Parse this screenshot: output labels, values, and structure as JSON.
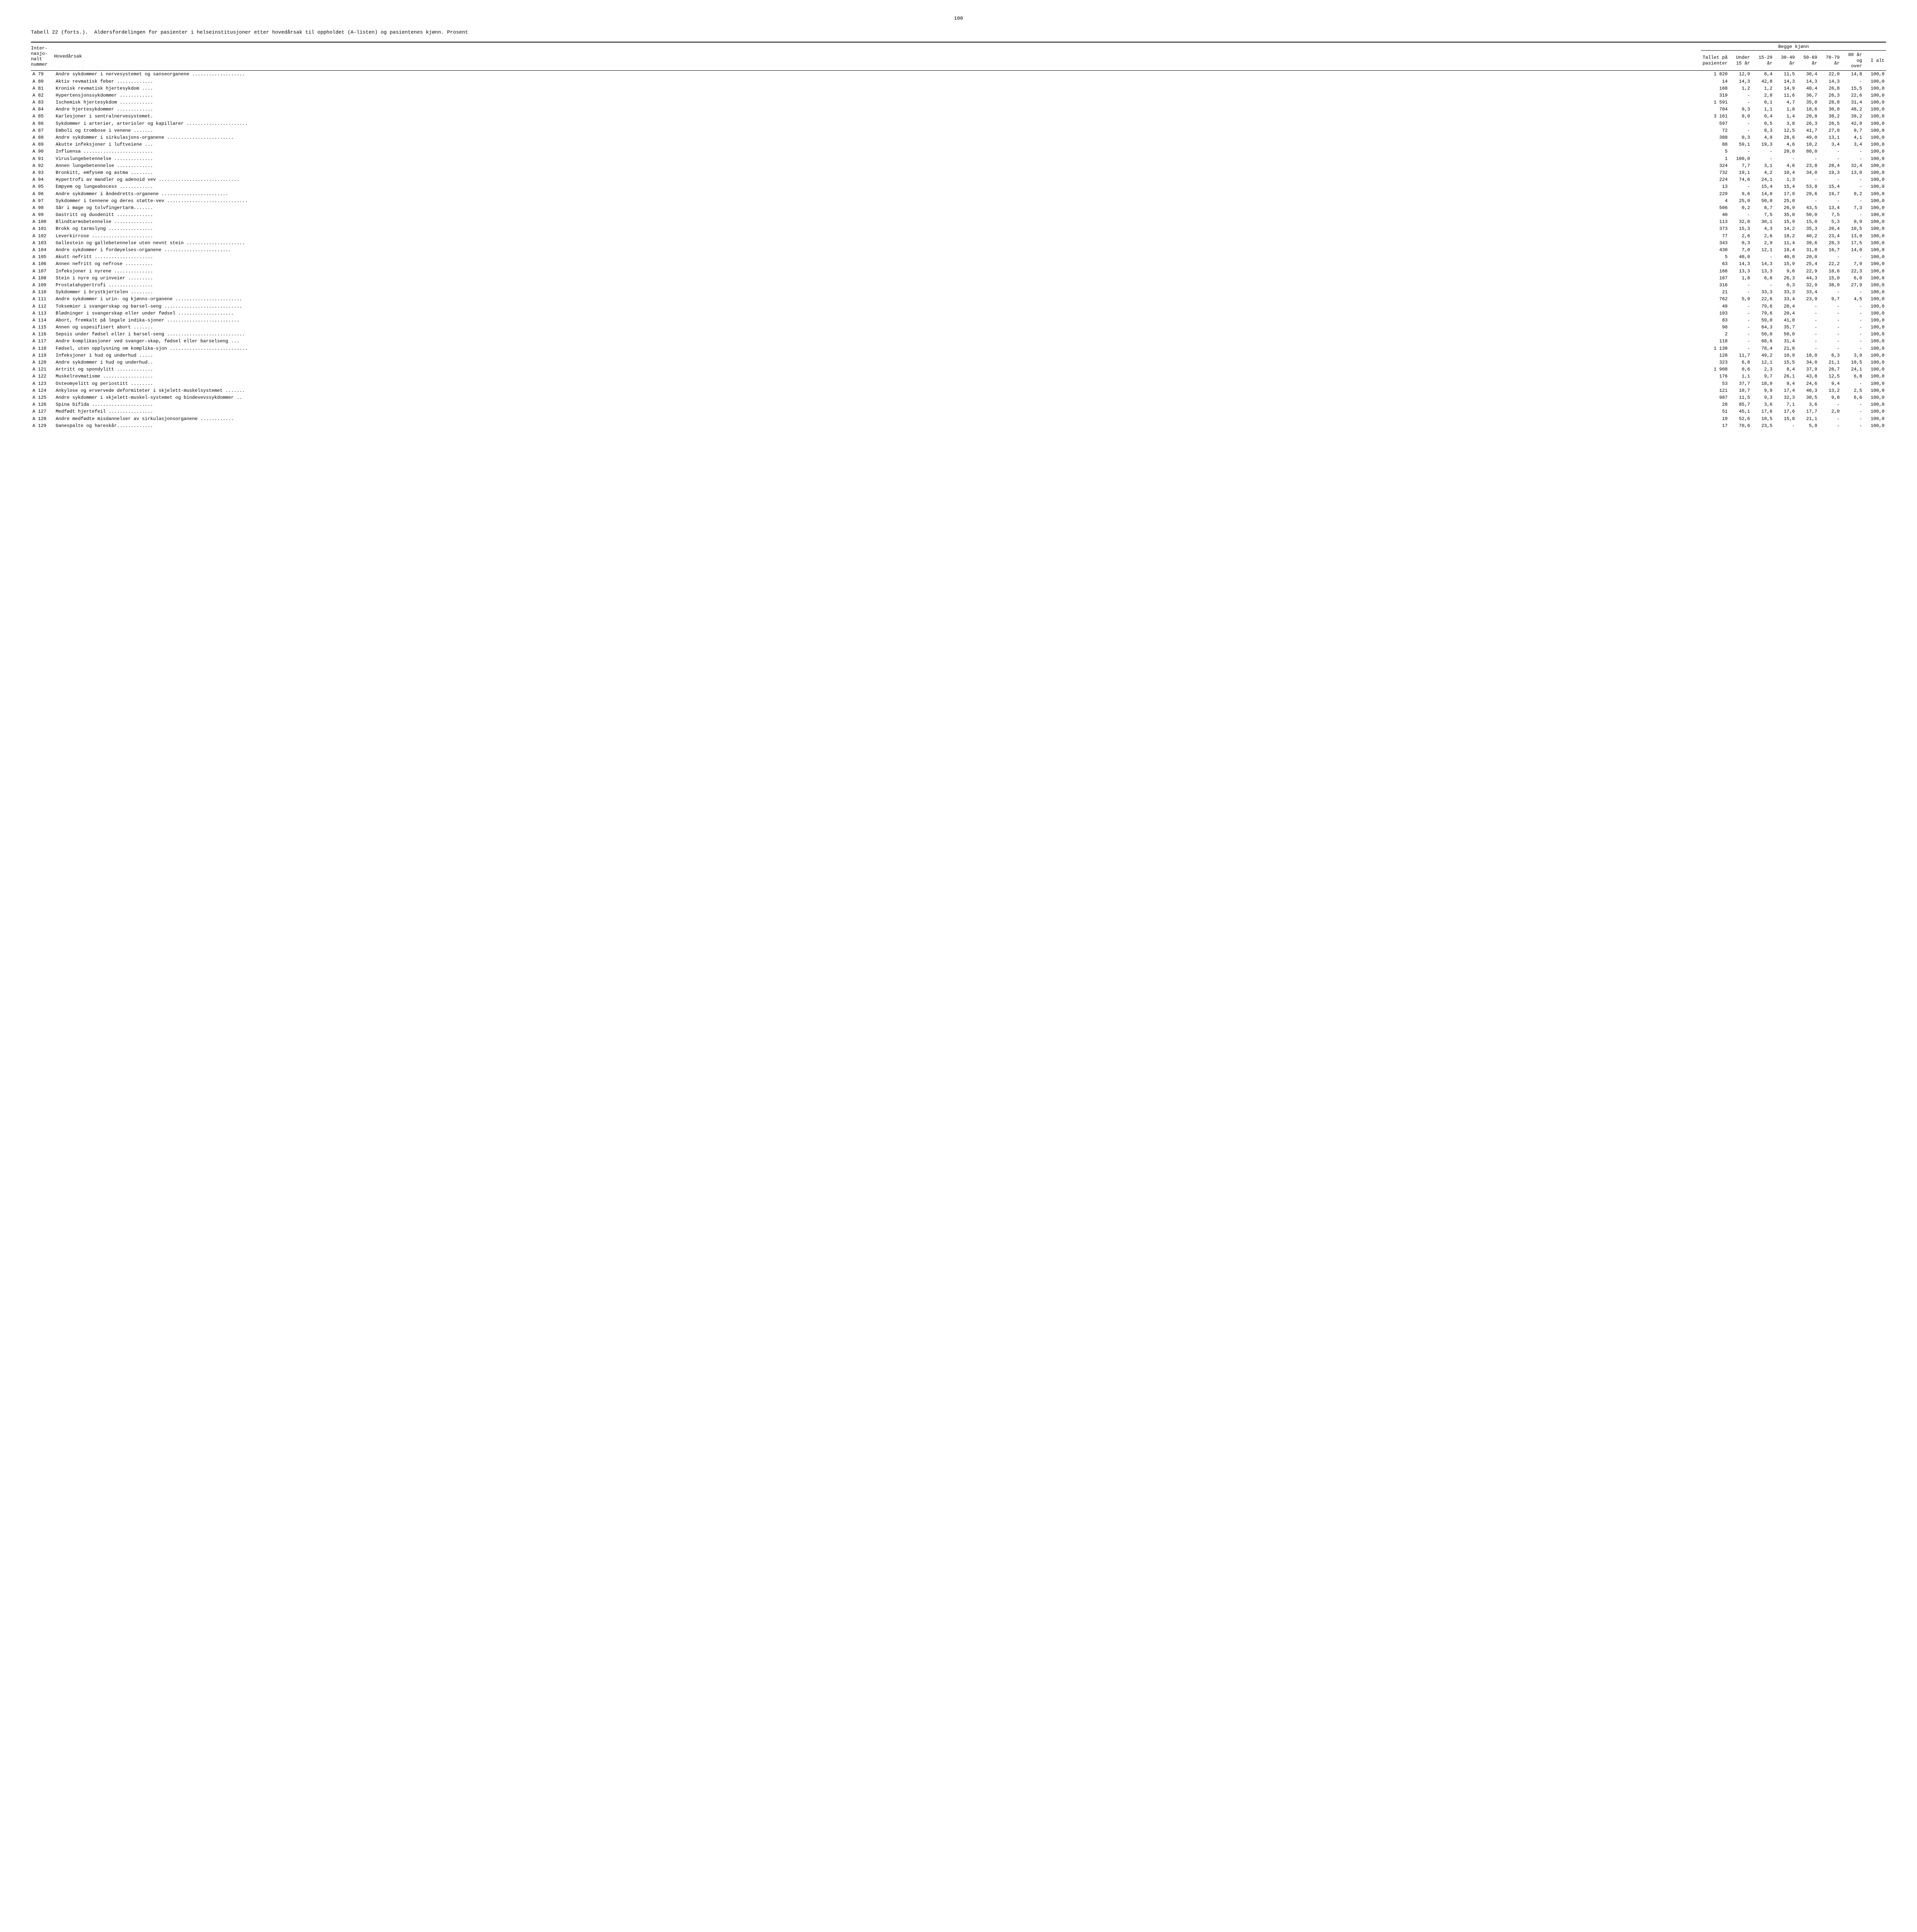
{
  "page_number": "100",
  "title_prefix": "Tabell 22 (forts.).",
  "title_text": "Aldersfordelingen for pasienter i helseinstitusjoner etter hovedårsak til oppholdet (A-listen) og pasientenes kjønn.  Prosent",
  "header": {
    "group_label": "Begge kjønn",
    "col_code": "Inter-\nnasjo-\nnalt\nnummer",
    "col_desc": "Hovedårsak",
    "col_count": "Tallet på\npasienter",
    "col_under15": "Under\n15 år",
    "col_15_29": "15-29\når",
    "col_30_49": "30-49\når",
    "col_50_69": "50-69\når",
    "col_70_79": "70-79\når",
    "col_80plus": "80 år\nog\nover",
    "col_total": "I alt"
  },
  "rows": [
    {
      "code": "A  79",
      "desc": "Andre sykdommer i nervesystemet og sanseorganene ...................",
      "count": "1 820",
      "c1": "12,9",
      "c2": "8,4",
      "c3": "11,5",
      "c4": "30,4",
      "c5": "22,0",
      "c6": "14,8",
      "tot": "100,0"
    },
    {
      "code": "A  80",
      "desc": "Aktiv revmatisk feber .............",
      "count": "14",
      "c1": "14,3",
      "c2": "42,8",
      "c3": "14,3",
      "c4": "14,3",
      "c5": "14,3",
      "c6": "-",
      "tot": "100,0"
    },
    {
      "code": "A  81",
      "desc": "Kronisk revmatisk hjertesykdom ....",
      "count": "168",
      "c1": "1,2",
      "c2": "1,2",
      "c3": "14,9",
      "c4": "40,4",
      "c5": "26,8",
      "c6": "15,5",
      "tot": "100,0"
    },
    {
      "code": "A  82",
      "desc": "Hypertensjonssykdommer ............",
      "count": "319",
      "c1": "-",
      "c2": "2,8",
      "c3": "11,6",
      "c4": "36,7",
      "c5": "26,3",
      "c6": "22,6",
      "tot": "100,0"
    },
    {
      "code": "A  83",
      "desc": "Ischemisk hjertesykdom ............",
      "count": "1 591",
      "c1": "-",
      "c2": "0,1",
      "c3": "4,7",
      "c4": "35,0",
      "c5": "28,8",
      "c6": "31,4",
      "tot": "100,0"
    },
    {
      "code": "A  84",
      "desc": "Andre hjertesykdommer .............",
      "count": "704",
      "c1": "0,3",
      "c2": "1,1",
      "c3": "1,8",
      "c4": "18,6",
      "c5": "30,0",
      "c6": "48,2",
      "tot": "100,0"
    },
    {
      "code": "A  85",
      "desc": "Karlesjoner i sentralnervesystemet.",
      "count": "3 161",
      "c1": "0,0",
      "c2": "0,4",
      "c3": "1,4",
      "c4": "20,8",
      "c5": "38,2",
      "c6": "39,2",
      "tot": "100,0"
    },
    {
      "code": "A  86",
      "desc": "Sykdommer i arterier, arterioler og kapillarer ......................",
      "count": "597",
      "c1": "-",
      "c2": "0,5",
      "c3": "3,8",
      "c4": "26,3",
      "c5": "26,5",
      "c6": "42,9",
      "tot": "100,0"
    },
    {
      "code": "A  87",
      "desc": "Emboli og trombose i venene .......",
      "count": "72",
      "c1": "-",
      "c2": "8,3",
      "c3": "12,5",
      "c4": "41,7",
      "c5": "27,8",
      "c6": "9,7",
      "tot": "100,0"
    },
    {
      "code": "A  88",
      "desc": "Andre sykdommer i sirkulasjons-organene ........................",
      "count": "388",
      "c1": "0,3",
      "c2": "4,9",
      "c3": "28,6",
      "c4": "49,0",
      "c5": "13,1",
      "c6": "4,1",
      "tot": "100,0"
    },
    {
      "code": "A  89",
      "desc": "Akutte infeksjoner i luftveiene ...",
      "count": "88",
      "c1": "59,1",
      "c2": "19,3",
      "c3": "4,6",
      "c4": "10,2",
      "c5": "3,4",
      "c6": "3,4",
      "tot": "100,0"
    },
    {
      "code": "A  90",
      "desc": "Influensa .........................",
      "count": "5",
      "c1": "-",
      "c2": "-",
      "c3": "20,0",
      "c4": "80,0",
      "c5": "-",
      "c6": "-",
      "tot": "100,0"
    },
    {
      "code": "A  91",
      "desc": "Viruslungebetennelse ..............",
      "count": "1",
      "c1": "100,0",
      "c2": "-",
      "c3": "-",
      "c4": "-",
      "c5": "-",
      "c6": "-",
      "tot": "100,0"
    },
    {
      "code": "A  92",
      "desc": "Annen lungebetennelse .............",
      "count": "324",
      "c1": "7,7",
      "c2": "3,1",
      "c3": "4,6",
      "c4": "23,8",
      "c5": "28,4",
      "c6": "32,4",
      "tot": "100,0"
    },
    {
      "code": "A  93",
      "desc": "Bronkitt, emfysem og astma ........",
      "count": "732",
      "c1": "19,1",
      "c2": "4,2",
      "c3": "10,4",
      "c4": "34,0",
      "c5": "19,3",
      "c6": "13,0",
      "tot": "100,0"
    },
    {
      "code": "A  94",
      "desc": "Hypertrofi av mandler og adenoid vev .............................",
      "count": "224",
      "c1": "74,6",
      "c2": "24,1",
      "c3": "1,3",
      "c4": "-",
      "c5": "-",
      "c6": "-",
      "tot": "100,0"
    },
    {
      "code": "A  95",
      "desc": "Empyem og lungeabscess ............",
      "count": "13",
      "c1": "-",
      "c2": "15,4",
      "c3": "15,4",
      "c4": "53,8",
      "c5": "15,4",
      "c6": "-",
      "tot": "100,0"
    },
    {
      "code": "A  96",
      "desc": "Andre sykdommer i åndedretts-organene ........................",
      "count": "229",
      "c1": "9,6",
      "c2": "14,0",
      "c3": "17,9",
      "c4": "29,6",
      "c5": "19,7",
      "c6": "9,2",
      "tot": "100,0"
    },
    {
      "code": "A  97",
      "desc": "Sykdommer i tennene og deres støtte-vev .............................",
      "count": "4",
      "c1": "25,0",
      "c2": "50,0",
      "c3": "25,0",
      "c4": "-",
      "c5": "-",
      "c6": "-",
      "tot": "100,0"
    },
    {
      "code": "A  98",
      "desc": "Sår i mage og tolvfingertarm.......",
      "count": "506",
      "c1": "0,2",
      "c2": "8,7",
      "c3": "26,9",
      "c4": "43,5",
      "c5": "13,4",
      "c6": "7,3",
      "tot": "100,0"
    },
    {
      "code": "A  99",
      "desc": "Gastritt og duodenitt .............",
      "count": "40",
      "c1": "-",
      "c2": "7,5",
      "c3": "35,0",
      "c4": "50,0",
      "c5": "7,5",
      "c6": "-",
      "tot": "100,0"
    },
    {
      "code": "A 100",
      "desc": "Blindtarmsbetennelse ..............",
      "count": "113",
      "c1": "32,8",
      "c2": "30,1",
      "c3": "15,9",
      "c4": "15,0",
      "c5": "5,3",
      "c6": "0,9",
      "tot": "100,0"
    },
    {
      "code": "A 101",
      "desc": "Brokk og tarmslyng ................",
      "count": "373",
      "c1": "15,3",
      "c2": "4,3",
      "c3": "14,2",
      "c4": "35,3",
      "c5": "20,4",
      "c6": "10,5",
      "tot": "100,0"
    },
    {
      "code": "A 102",
      "desc": "Leverkirrose ......................",
      "count": "77",
      "c1": "2,6",
      "c2": "2,6",
      "c3": "18,2",
      "c4": "40,2",
      "c5": "23,4",
      "c6": "13,0",
      "tot": "100,0"
    },
    {
      "code": "A 103",
      "desc": "Gallestein og gallebetennelse uten nevnt stein .....................",
      "count": "343",
      "c1": "0,3",
      "c2": "2,9",
      "c3": "11,4",
      "c4": "39,6",
      "c5": "28,3",
      "c6": "17,5",
      "tot": "100,0"
    },
    {
      "code": "A 104",
      "desc": "Andre sykdommer i fordøyelses-organene ........................",
      "count": "430",
      "c1": "7,0",
      "c2": "12,1",
      "c3": "18,4",
      "c4": "31,8",
      "c5": "16,7",
      "c6": "14,0",
      "tot": "100,0"
    },
    {
      "code": "A 105",
      "desc": "Akutt nefritt .....................",
      "count": "5",
      "c1": "40,0",
      "c2": "-",
      "c3": "40,0",
      "c4": "20,0",
      "c5": "-",
      "c6": "-",
      "tot": "100,0"
    },
    {
      "code": "A 106",
      "desc": "Annen nefritt og nefrose ..........",
      "count": "63",
      "c1": "14,3",
      "c2": "14,3",
      "c3": "15,9",
      "c4": "25,4",
      "c5": "22,2",
      "c6": "7,9",
      "tot": "100,0"
    },
    {
      "code": "A 107",
      "desc": "Infeksjoner i nyrene ..............",
      "count": "166",
      "c1": "13,3",
      "c2": "13,3",
      "c3": "9,6",
      "c4": "22,9",
      "c5": "18,6",
      "c6": "22,3",
      "tot": "100,0"
    },
    {
      "code": "A 108",
      "desc": "Stein i nyre og urinveier .........",
      "count": "167",
      "c1": "1,8",
      "c2": "6,6",
      "c3": "26,3",
      "c4": "44,3",
      "c5": "15,0",
      "c6": "6,0",
      "tot": "100,0"
    },
    {
      "code": "A 109",
      "desc": "Prostatahypertrofi ................",
      "count": "316",
      "c1": "-",
      "c2": "-",
      "c3": "0,3",
      "c4": "32,9",
      "c5": "38,9",
      "c6": "27,9",
      "tot": "100,0"
    },
    {
      "code": "A 110",
      "desc": "Sykdommer i brystkjertelen ........",
      "count": "21",
      "c1": "-",
      "c2": "33,3",
      "c3": "33,3",
      "c4": "33,4",
      "c5": "-",
      "c6": "-",
      "tot": "100,0"
    },
    {
      "code": "A 111",
      "desc": "Andre sykdommer i urin- og kjønns-organene ........................",
      "count": "762",
      "c1": "5,9",
      "c2": "22,6",
      "c3": "33,4",
      "c4": "23,9",
      "c5": "9,7",
      "c6": "4,5",
      "tot": "100,0"
    },
    {
      "code": "A 112",
      "desc": "Toksemier i svangerskap og barsel-seng ............................",
      "count": "49",
      "c1": "-",
      "c2": "79,6",
      "c3": "20,4",
      "c4": "-",
      "c5": "-",
      "c6": "-",
      "tot": "100,0"
    },
    {
      "code": "A 113",
      "desc": "Blødninger i svangerskap eller under fødsel ....................",
      "count": "103",
      "c1": "-",
      "c2": "79,6",
      "c3": "20,4",
      "c4": "-",
      "c5": "-",
      "c6": "-",
      "tot": "100,0"
    },
    {
      "code": "A 114",
      "desc": "Abort, fremkalt på legale indika-sjoner ..........................",
      "count": "83",
      "c1": "-",
      "c2": "59,0",
      "c3": "41,0",
      "c4": "-",
      "c5": "-",
      "c6": "-",
      "tot": "100,0"
    },
    {
      "code": "A 115",
      "desc": "Annen og uspesifisert abort .......",
      "count": "98",
      "c1": "-",
      "c2": "64,3",
      "c3": "35,7",
      "c4": "-",
      "c5": "-",
      "c6": "-",
      "tot": "100,0"
    },
    {
      "code": "A 116",
      "desc": "Sepsis under fødsel eller i barsel-seng ............................",
      "count": "2",
      "c1": "-",
      "c2": "50,0",
      "c3": "50,0",
      "c4": "-",
      "c5": "-",
      "c6": "-",
      "tot": "100,0"
    },
    {
      "code": "A 117",
      "desc": "Andre komplikasjoner ved svanger-skap, fødsel eller barselseng ...",
      "count": "118",
      "c1": "-",
      "c2": "68,6",
      "c3": "31,4",
      "c4": "-",
      "c5": "-",
      "c6": "-",
      "tot": "100,0"
    },
    {
      "code": "A 118",
      "desc": "Fødsel, uten opplysning om komplika-sjon ............................",
      "count": "1 138",
      "c1": "-",
      "c2": "78,4",
      "c3": "21,6",
      "c4": "-",
      "c5": "-",
      "c6": "-",
      "tot": "100,0"
    },
    {
      "code": "A 119",
      "desc": "Infeksjoner i hud og underhud .....",
      "count": "128",
      "c1": "11,7",
      "c2": "49,2",
      "c3": "10,9",
      "c4": "18,0",
      "c5": "6,3",
      "c6": "3,9",
      "tot": "100,0"
    },
    {
      "code": "A 120",
      "desc": "Andre sykdommer i hud og underhud..",
      "count": "323",
      "c1": "6,8",
      "c2": "12,1",
      "c3": "15,5",
      "c4": "34,0",
      "c5": "21,1",
      "c6": "10,5",
      "tot": "100,0"
    },
    {
      "code": "A 121",
      "desc": "Artritt og spondylitt .............",
      "count": "1 908",
      "c1": "0,6",
      "c2": "2,3",
      "c3": "8,4",
      "c4": "37,9",
      "c5": "26,7",
      "c6": "24,1",
      "tot": "100,0"
    },
    {
      "code": "A 122",
      "desc": "Muskelrevmatisme ..................",
      "count": "176",
      "c1": "1,1",
      "c2": "9,7",
      "c3": "26,1",
      "c4": "43,8",
      "c5": "12,5",
      "c6": "6,8",
      "tot": "100,0"
    },
    {
      "code": "A 123",
      "desc": "Osteomyelitt og periostitt ........",
      "count": "53",
      "c1": "37,7",
      "c2": "18,9",
      "c3": "9,4",
      "c4": "24,6",
      "c5": "9,4",
      "c6": "-",
      "tot": "100,0"
    },
    {
      "code": "A 124",
      "desc": "Ankylose og ervervede deformiteter i skjelett-muskelsystemet .......",
      "count": "121",
      "c1": "10,7",
      "c2": "9,9",
      "c3": "17,4",
      "c4": "46,3",
      "c5": "13,2",
      "c6": "2,5",
      "tot": "100,0"
    },
    {
      "code": "A 125",
      "desc": "Andre sykdommer i skjelett-muskel-systemet og bindevevssykdommer ..",
      "count": "987",
      "c1": "11,5",
      "c2": "9,3",
      "c3": "32,3",
      "c4": "30,5",
      "c5": "9,8",
      "c6": "6,6",
      "tot": "100,0"
    },
    {
      "code": "A 126",
      "desc": "Spina bifida ......................",
      "count": "28",
      "c1": "85,7",
      "c2": "3,6",
      "c3": "7,1",
      "c4": "3,6",
      "c5": "-",
      "c6": "-",
      "tot": "100,0"
    },
    {
      "code": "A 127",
      "desc": "Medfødt hjertefeil ................",
      "count": "51",
      "c1": "45,1",
      "c2": "17,6",
      "c3": "17,6",
      "c4": "17,7",
      "c5": "2,0",
      "c6": "-",
      "tot": "100,0"
    },
    {
      "code": "A 128",
      "desc": "Andre medfødte misdannelser av sirkulasjonsorganene ............",
      "count": "19",
      "c1": "52,6",
      "c2": "10,5",
      "c3": "15,8",
      "c4": "21,1",
      "c5": "-",
      "c6": "-",
      "tot": "100,0"
    },
    {
      "code": "A 129",
      "desc": "Ganespalte og hareskår.............",
      "count": "17",
      "c1": "70,6",
      "c2": "23,5",
      "c3": "-",
      "c4": "5,9",
      "c5": "-",
      "c6": "-",
      "tot": "100,0"
    }
  ]
}
